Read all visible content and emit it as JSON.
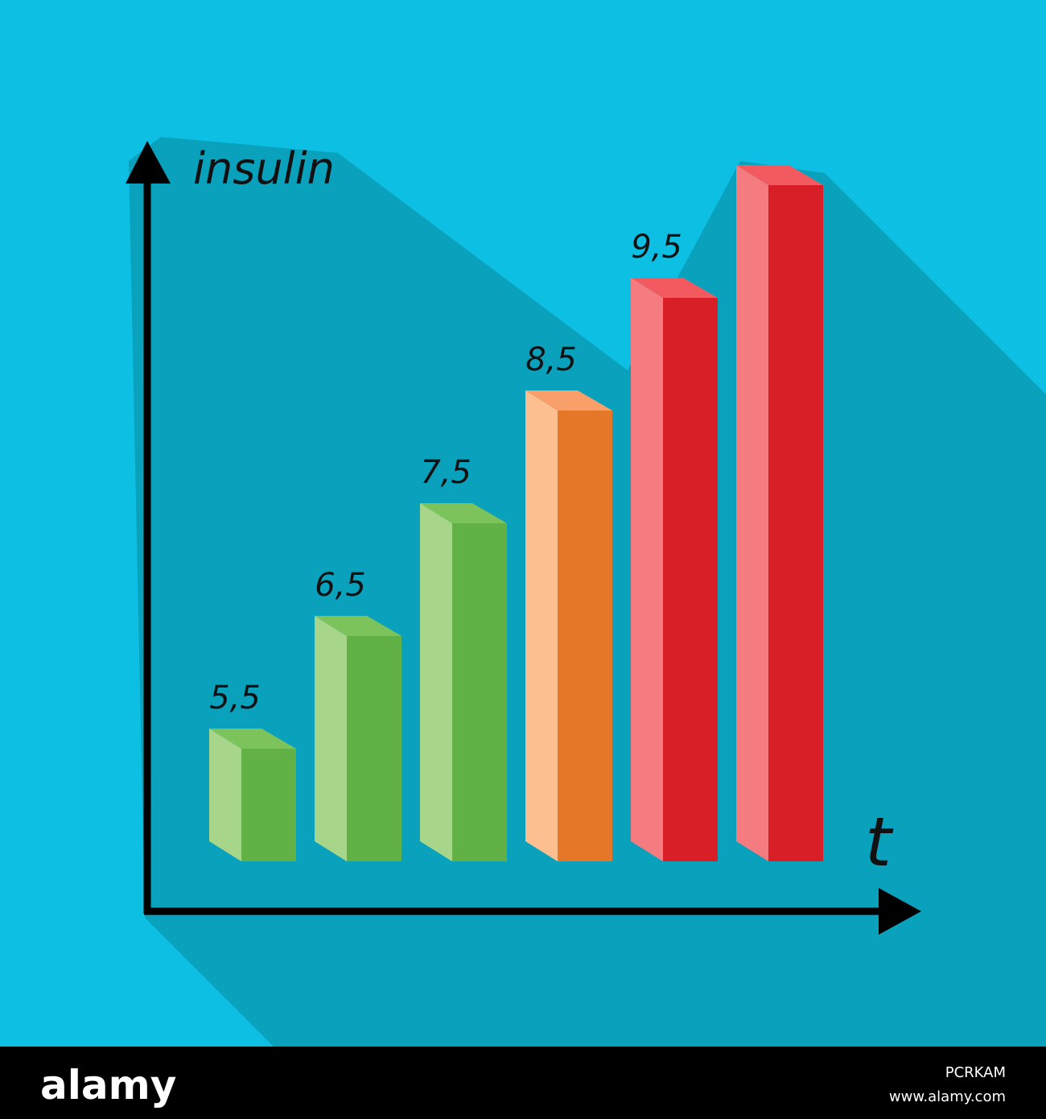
{
  "chart_data": {
    "type": "bar3d",
    "y_label": "insulin",
    "x_label": "t",
    "categories": [
      null,
      null,
      null,
      null,
      null,
      null
    ],
    "values": [
      5.5,
      6.5,
      7.5,
      8.5,
      9.5,
      10.5
    ],
    "value_labels": [
      "5,5",
      "6,5",
      "7,5",
      "8,5",
      "9,5",
      null
    ],
    "colors": [
      "#62b146",
      "#62b146",
      "#62b146",
      "#e57828",
      "#d81f27",
      "#d81f27"
    ],
    "side_colors": [
      "#a7d58a",
      "#a7d58a",
      "#a7d58a",
      "#fdbf90",
      "#f47c80",
      "#f47c80"
    ],
    "top_colors": [
      "#7cc35c",
      "#7cc35c",
      "#7cc35c",
      "#f9a06a",
      "#f25a60",
      "#f25a60"
    ],
    "ylim": [
      4.5,
      11
    ]
  },
  "footer": {
    "brand": "alamy",
    "image_id": "PCRKAM",
    "url": "www.alamy.com"
  }
}
